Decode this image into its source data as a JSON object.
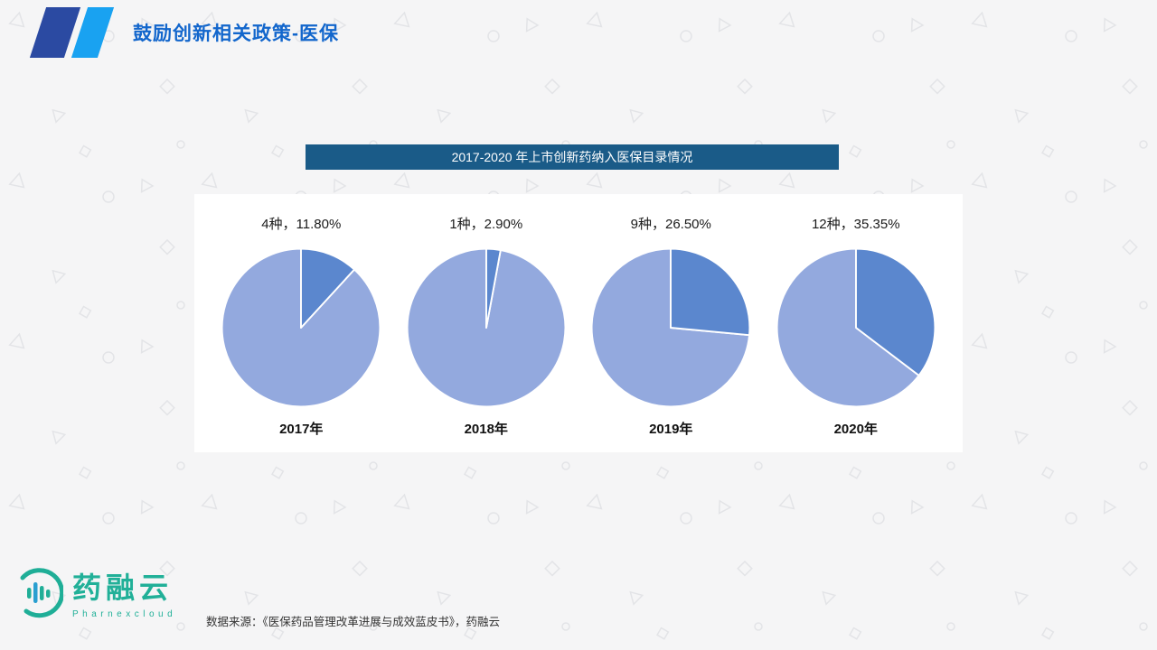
{
  "slide": {
    "title": "鼓励创新相关政策-医保",
    "banner_title": "2017-2020 年上市创新药纳入医保目录情况",
    "source_note": "数据来源：《医保药品管理改革进展与成效蓝皮书》，药融云"
  },
  "logo": {
    "name": "药融云",
    "subtitle": "Pharnexcloud",
    "color": "#21b098"
  },
  "chart_data": {
    "type": "pie",
    "title": "2017-2020 年上市创新药纳入医保目录情况",
    "legend_position": "none",
    "colors": {
      "included_slice": "#5b87ce",
      "not_included_slice": "#93a9de",
      "slice_border": "#ffffff"
    },
    "charts": [
      {
        "year": "2017年",
        "label": "4种，11.80%",
        "count": 4,
        "percent_included": 11.8
      },
      {
        "year": "2018年",
        "label": "1种，2.90%",
        "count": 1,
        "percent_included": 2.9
      },
      {
        "year": "2019年",
        "label": "9种，26.50%",
        "count": 9,
        "percent_included": 26.5
      },
      {
        "year": "2020年",
        "label": "12种，35.35%",
        "count": 12,
        "percent_included": 35.35
      }
    ]
  }
}
